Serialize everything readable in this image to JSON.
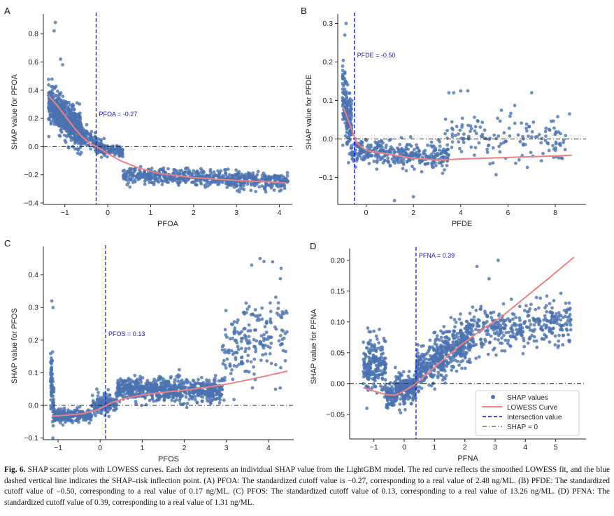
{
  "colors": {
    "points": "#4a72b0",
    "lowess": "#f08080",
    "intersection": "#1515dd",
    "zero_line": "#222222"
  },
  "chart_data": [
    {
      "panel": "A",
      "type": "scatter",
      "xlabel": "PFOA",
      "ylabel": "SHAP value for PFOA",
      "xlim": [
        -1.5,
        4.3
      ],
      "ylim": [
        -0.41,
        0.9
      ],
      "xticks": [
        -1,
        0,
        1,
        2,
        3,
        4
      ],
      "yticks": [
        -0.4,
        -0.2,
        0.0,
        0.2,
        0.4,
        0.6,
        0.8
      ],
      "xtick_labels": [
        "−1",
        "0",
        "1",
        "2",
        "3",
        "4"
      ],
      "ytick_labels": [
        "−0.4",
        "−0.2",
        "0.0",
        "0.2",
        "0.4",
        "0.6",
        "0.8"
      ],
      "cutoff": -0.27,
      "cutoff_label": "PFOA = -0.27",
      "lowess": [
        [
          -1.38,
          0.36
        ],
        [
          -1.2,
          0.3
        ],
        [
          -1.0,
          0.22
        ],
        [
          -0.8,
          0.14
        ],
        [
          -0.6,
          0.07
        ],
        [
          -0.4,
          0.02
        ],
        [
          -0.2,
          -0.01
        ],
        [
          0.0,
          -0.05
        ],
        [
          0.3,
          -0.1
        ],
        [
          0.7,
          -0.15
        ],
        [
          1.2,
          -0.19
        ],
        [
          2.0,
          -0.22
        ],
        [
          3.0,
          -0.24
        ],
        [
          3.8,
          -0.25
        ],
        [
          4.2,
          -0.26
        ]
      ],
      "clusters": [
        {
          "x": [
            -1.38,
            -0.6
          ],
          "base": [
            0.3,
            0.1
          ],
          "spread": 0.13,
          "n": 600
        },
        {
          "x": [
            -0.6,
            0.0
          ],
          "base": [
            0.08,
            -0.03
          ],
          "spread": 0.06,
          "n": 150
        },
        {
          "x": [
            0.0,
            0.35
          ],
          "base": [
            -0.02,
            -0.04
          ],
          "spread": 0.03,
          "n": 80
        },
        {
          "x": [
            0.35,
            4.2
          ],
          "base": [
            -0.2,
            -0.25
          ],
          "spread": 0.06,
          "n": 600
        }
      ],
      "outliers": [
        [
          -1.22,
          0.88
        ],
        [
          -1.25,
          0.82
        ],
        [
          -1.1,
          0.62
        ],
        [
          -1.05,
          0.58
        ]
      ]
    },
    {
      "panel": "B",
      "type": "scatter",
      "xlabel": "PFDE",
      "ylabel": "SHAP value for PFDE",
      "xlim": [
        -1.2,
        9.3
      ],
      "ylim": [
        -0.17,
        0.31
      ],
      "xticks": [
        0,
        2,
        4,
        6,
        8
      ],
      "yticks": [
        -0.1,
        0.0,
        0.1,
        0.2,
        0.3
      ],
      "xtick_labels": [
        "0",
        "2",
        "4",
        "6",
        "8"
      ],
      "ytick_labels": [
        "−0.1",
        "0.0",
        "0.1",
        "0.2",
        "0.3"
      ],
      "cutoff": -0.5,
      "cutoff_label": "PFDE = -0.50",
      "lowess": [
        [
          -0.95,
          0.08
        ],
        [
          -0.7,
          0.04
        ],
        [
          -0.4,
          -0.01
        ],
        [
          0.0,
          -0.03
        ],
        [
          0.5,
          -0.035
        ],
        [
          1.0,
          -0.04
        ],
        [
          1.5,
          -0.045
        ],
        [
          2.0,
          -0.05
        ],
        [
          3.0,
          -0.055
        ],
        [
          4.0,
          -0.052
        ],
        [
          5.0,
          -0.05
        ],
        [
          6.0,
          -0.048
        ],
        [
          7.0,
          -0.046
        ],
        [
          8.0,
          -0.044
        ],
        [
          8.7,
          -0.042
        ]
      ],
      "clusters": [
        {
          "x": [
            -1.0,
            -0.6
          ],
          "base": [
            0.12,
            0.02
          ],
          "spread": 0.08,
          "n": 180
        },
        {
          "x": [
            -0.6,
            3.5
          ],
          "base": [
            -0.03,
            -0.05
          ],
          "spread": 0.035,
          "n": 350
        },
        {
          "x": [
            3.3,
            8.5
          ],
          "base": [
            0.01,
            -0.02
          ],
          "spread": 0.06,
          "n": 150
        }
      ],
      "outliers": [
        [
          -0.85,
          0.3
        ],
        [
          -0.9,
          0.27
        ],
        [
          3.7,
          0.12
        ],
        [
          4.0,
          0.125
        ],
        [
          4.3,
          0.125
        ],
        [
          3.5,
          0.12
        ],
        [
          7.0,
          0.12
        ],
        [
          8.6,
          0.065
        ],
        [
          2.0,
          -0.15
        ],
        [
          1.2,
          -0.16
        ]
      ]
    },
    {
      "panel": "C",
      "type": "scatter",
      "xlabel": "PFOS",
      "ylabel": "SHAP value for PFOS",
      "xlim": [
        -1.35,
        4.6
      ],
      "ylim": [
        -0.105,
        0.47
      ],
      "xticks": [
        -1,
        0,
        1,
        2,
        3,
        4
      ],
      "yticks": [
        -0.1,
        0.0,
        0.1,
        0.2,
        0.3,
        0.4
      ],
      "xtick_labels": [
        "−1",
        "0",
        "1",
        "2",
        "3",
        "4"
      ],
      "ytick_labels": [
        "−0.1",
        "0.0",
        "0.1",
        "0.2",
        "0.3",
        "0.4"
      ],
      "cutoff": 0.13,
      "cutoff_label": "PFOS = 0.13",
      "lowess": [
        [
          -1.15,
          -0.033
        ],
        [
          -0.8,
          -0.03
        ],
        [
          -0.4,
          -0.025
        ],
        [
          -0.1,
          -0.015
        ],
        [
          0.1,
          -0.003
        ],
        [
          0.3,
          0.01
        ],
        [
          0.6,
          0.022
        ],
        [
          1.0,
          0.032
        ],
        [
          1.5,
          0.04
        ],
        [
          2.0,
          0.047
        ],
        [
          2.5,
          0.055
        ],
        [
          3.0,
          0.065
        ],
        [
          3.5,
          0.078
        ],
        [
          4.0,
          0.092
        ],
        [
          4.45,
          0.105
        ]
      ],
      "clusters": [
        {
          "x": [
            -1.18,
            -1.1
          ],
          "base": [
            0.1,
            0.0
          ],
          "spread": 0.1,
          "n": 80
        },
        {
          "x": [
            -1.1,
            -0.2
          ],
          "base": [
            -0.03,
            -0.03
          ],
          "spread": 0.018,
          "n": 250
        },
        {
          "x": [
            -0.2,
            0.4
          ],
          "base": [
            0.0,
            0.01
          ],
          "spread": 0.035,
          "n": 150
        },
        {
          "x": [
            0.4,
            2.9
          ],
          "base": [
            0.05,
            0.045
          ],
          "spread": 0.035,
          "n": 700
        },
        {
          "x": [
            2.9,
            4.45
          ],
          "base": [
            0.15,
            0.25
          ],
          "spread": 0.12,
          "n": 200
        }
      ],
      "outliers": [
        [
          -1.15,
          0.32
        ],
        [
          -1.12,
          0.3
        ],
        [
          3.8,
          0.45
        ],
        [
          4.1,
          0.44
        ],
        [
          4.3,
          0.42
        ],
        [
          3.6,
          0.43
        ]
      ]
    },
    {
      "panel": "D",
      "type": "scatter",
      "xlabel": "PFNA",
      "ylabel": "SHAP value for PFNA",
      "xlim": [
        -1.8,
        6.0
      ],
      "ylim": [
        -0.09,
        0.21
      ],
      "xticks": [
        -1,
        0,
        1,
        2,
        3,
        4,
        5
      ],
      "yticks": [
        -0.05,
        0.0,
        0.05,
        0.1,
        0.15,
        0.2
      ],
      "xtick_labels": [
        "−1",
        "0",
        "1",
        "2",
        "3",
        "4",
        "5"
      ],
      "ytick_labels": [
        "−0.05",
        "0.00",
        "0.05",
        "0.10",
        "0.15",
        "0.20"
      ],
      "cutoff": 0.39,
      "cutoff_label": "PFNA = 0.39",
      "lowess": [
        [
          -1.35,
          -0.007
        ],
        [
          -1.0,
          -0.012
        ],
        [
          -0.6,
          -0.018
        ],
        [
          -0.3,
          -0.019
        ],
        [
          0.0,
          -0.012
        ],
        [
          0.3,
          -0.003
        ],
        [
          0.5,
          0.005
        ],
        [
          0.8,
          0.018
        ],
        [
          1.2,
          0.035
        ],
        [
          1.8,
          0.06
        ],
        [
          2.5,
          0.085
        ],
        [
          3.2,
          0.108
        ],
        [
          4.0,
          0.14
        ],
        [
          4.8,
          0.172
        ],
        [
          5.6,
          0.205
        ]
      ],
      "clusters": [
        {
          "x": [
            -1.35,
            -0.6
          ],
          "base": [
            0.03,
            0.03
          ],
          "spread": 0.045,
          "n": 200
        },
        {
          "x": [
            -0.6,
            0.4
          ],
          "base": [
            -0.02,
            -0.005
          ],
          "spread": 0.025,
          "n": 300
        },
        {
          "x": [
            0.4,
            2.2
          ],
          "base": [
            0.02,
            0.075
          ],
          "spread": 0.035,
          "n": 500
        },
        {
          "x": [
            2.2,
            5.5
          ],
          "base": [
            0.085,
            0.1
          ],
          "spread": 0.035,
          "n": 350
        }
      ],
      "outliers": [
        [
          2.4,
          0.19
        ],
        [
          3.1,
          0.2
        ],
        [
          2.8,
          0.17
        ],
        [
          -1.2,
          0.09
        ],
        [
          -1.0,
          0.085
        ]
      ]
    }
  ],
  "legend": {
    "points": "SHAP values",
    "lowess": "LOWESS Curve",
    "intersection": "Intersection value",
    "zero": "SHAP = 0"
  },
  "caption": {
    "label": "Fig. 6.",
    "text": " SHAP scatter plots with LOWESS curves. Each dot represents an individual SHAP value from the LightGBM model. The red curve reflects the smoothed LOWESS fit, and the blue dashed vertical line indicates the SHAP–risk inflection point. (A) PFOA: The standardized cutoff value is −0.27, corresponding to a real value of 2.48 ng/ML. (B) PFDE: The standardized cutoff value of −0.50, corresponding to a real value of 0.17 ng/ML. (C) PFOS: The standardized cutoff value of 0.13, corresponding to a real value of 13.26 ng/ML. (D) PFNA: The standardized cutoff value of 0.39, corresponding to a real value of 1.31 ng/ML."
  }
}
